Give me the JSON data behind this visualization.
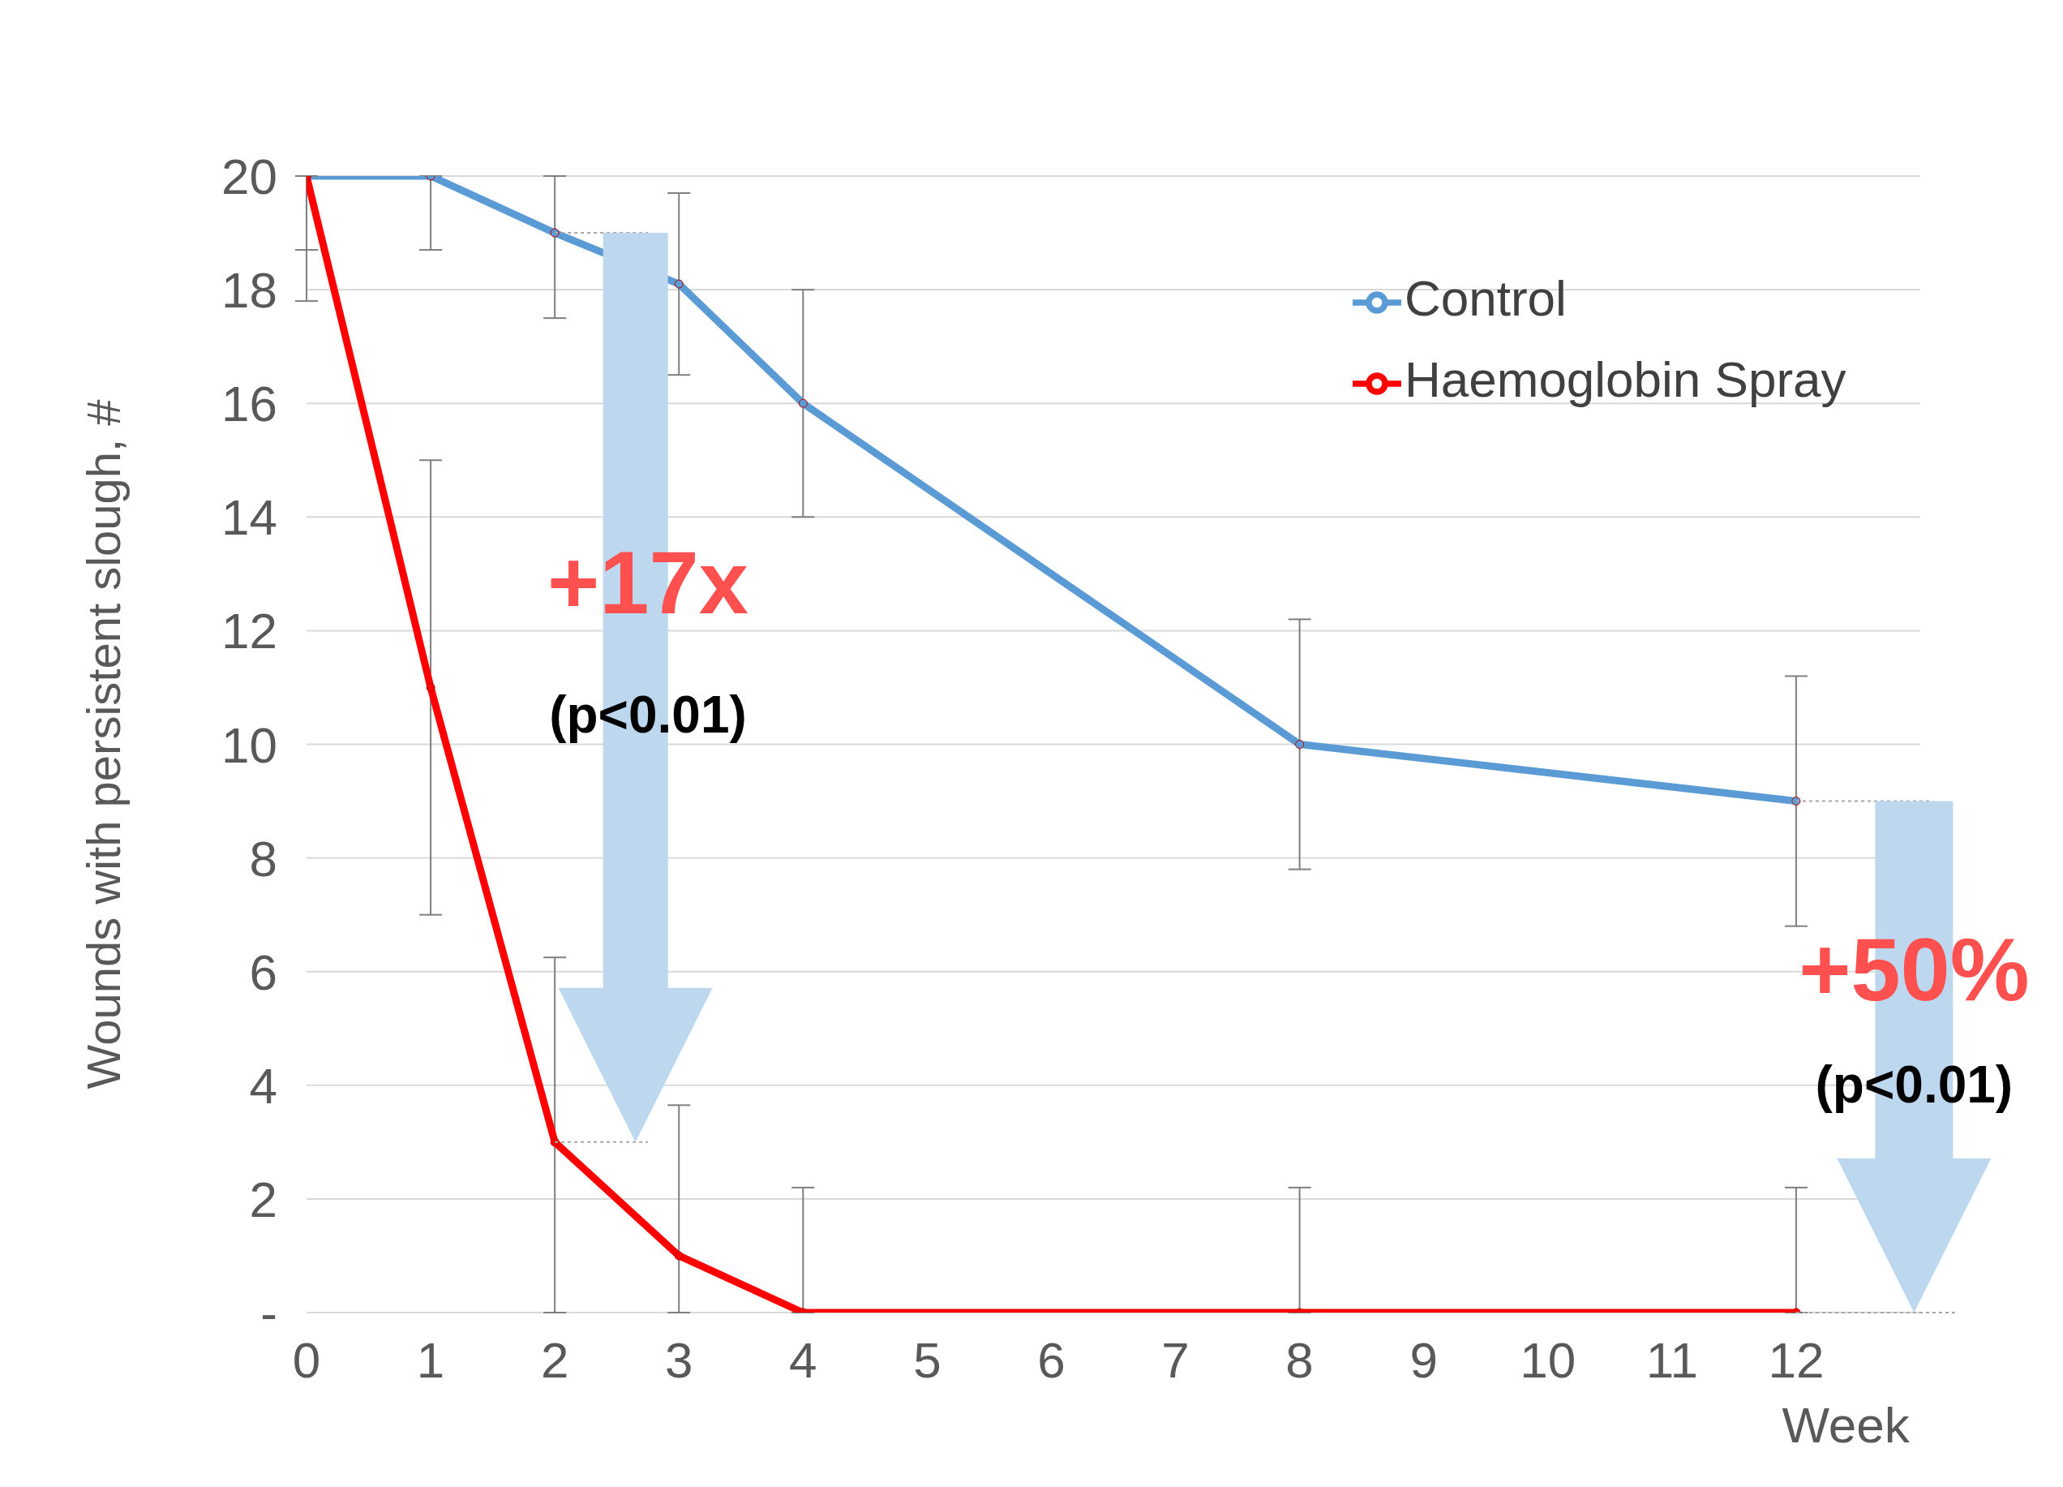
{
  "chart_data": {
    "type": "line",
    "xlabel": "Week",
    "ylabel": "Wounds with persistent slough, #",
    "x": [
      0,
      1,
      2,
      3,
      4,
      8,
      12
    ],
    "series": [
      {
        "name": "Control",
        "color": "#5b9bd5",
        "values": [
          20,
          20,
          19,
          18.1,
          16,
          10,
          9
        ],
        "errors": [
          [
            18.7,
            20
          ],
          [
            18.7,
            20
          ],
          [
            17.5,
            20
          ],
          [
            16.5,
            19.7
          ],
          [
            14,
            18
          ],
          [
            7.8,
            12.2
          ],
          [
            6.8,
            11.2
          ]
        ]
      },
      {
        "name": "Haemoglobin Spray",
        "color": "#ff0000",
        "values": [
          20,
          11,
          3,
          1,
          0,
          0,
          0
        ],
        "errors": [
          [
            17.8,
            20
          ],
          [
            7,
            15
          ],
          [
            0,
            6.25
          ],
          [
            0,
            3.65
          ],
          [
            0,
            2.2
          ],
          [
            0,
            2.2
          ],
          [
            0,
            2.2
          ]
        ]
      }
    ],
    "xlim": [
      0,
      13
    ],
    "xticks": [
      0,
      1,
      2,
      3,
      4,
      5,
      6,
      7,
      8,
      9,
      10,
      11,
      12
    ],
    "ylim": [
      0,
      20
    ],
    "yticks": [
      {
        "value": 0,
        "label": "-"
      },
      2,
      4,
      6,
      8,
      10,
      12,
      14,
      16,
      18,
      20
    ],
    "grid": "y",
    "legend": "top right",
    "marker": "circle",
    "line_style": "solid",
    "annotations": [
      "+17x",
      "(p<0.01)",
      "+50%",
      "(p<0.01)"
    ]
  }
}
